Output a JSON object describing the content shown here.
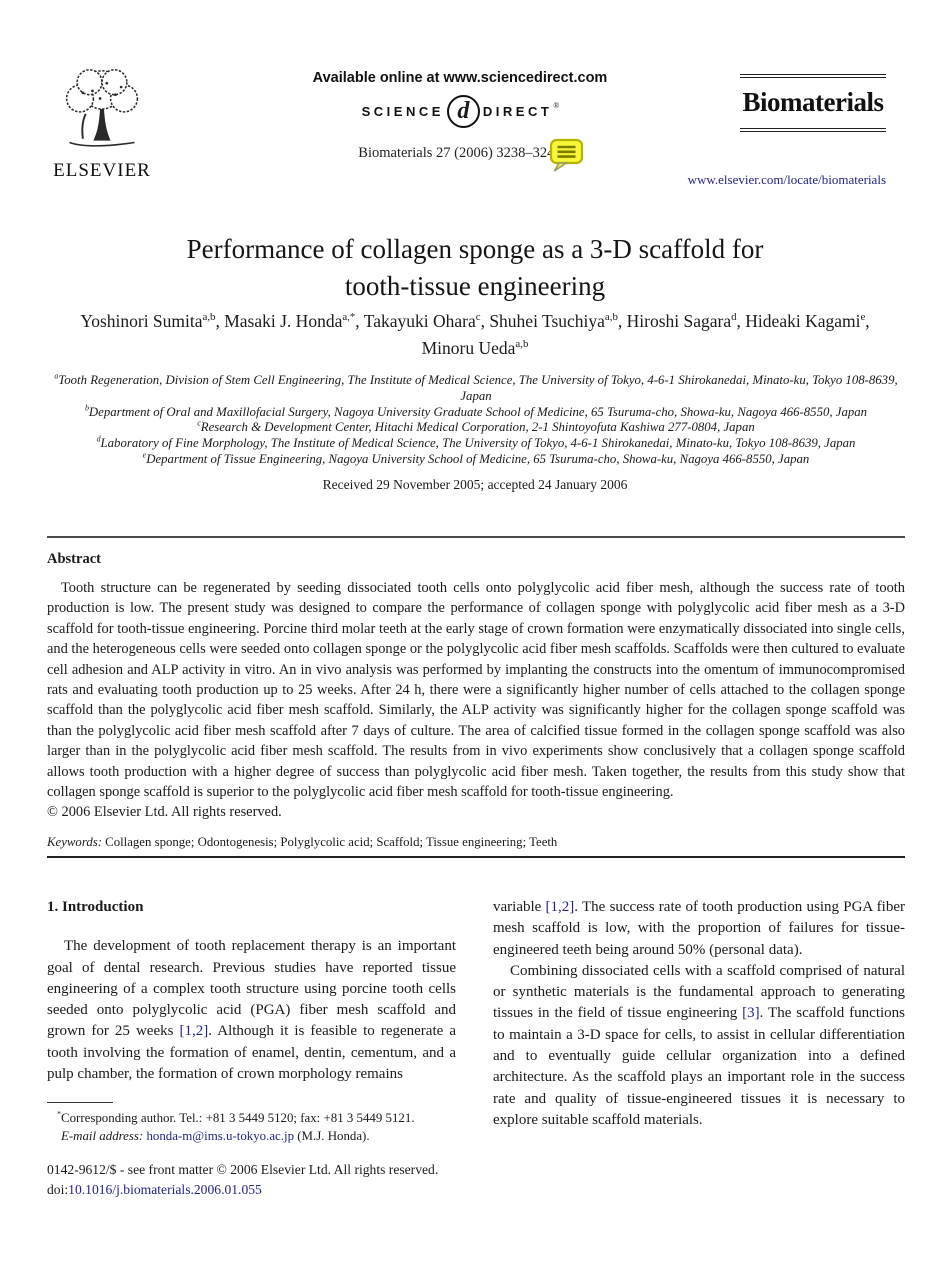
{
  "page": {
    "link_color": "#23238c"
  },
  "header": {
    "available_online": "Available online at www.sciencedirect.com",
    "sciencedirect_left": "SCIENCE",
    "sciencedirect_d": "d",
    "sciencedirect_right": "DIRECT",
    "sciencedirect_reg": "®",
    "citation": "Biomaterials 27 (2006) 3238–3248",
    "elsevier_label": "ELSEVIER",
    "journal_name": "Biomaterials",
    "journal_url": "www.elsevier.com/locate/biomaterials"
  },
  "article": {
    "title_line1": "Performance of collagen sponge as a 3-D scaffold for",
    "title_line2": "tooth-tissue engineering",
    "authors_rich": [
      {
        "t": "Yoshinori Sumita"
      },
      {
        "t": "a,b",
        "c": "sup"
      },
      {
        "t": ", Masaki J. Honda"
      },
      {
        "t": "a,*",
        "c": "sup"
      },
      {
        "t": ", Takayuki Ohara"
      },
      {
        "t": "c",
        "c": "sup"
      },
      {
        "t": ", Shuhei Tsuchiya"
      },
      {
        "t": "a,b",
        "c": "sup"
      },
      {
        "t": ", Hiroshi Sagara"
      },
      {
        "t": "d",
        "c": "sup"
      },
      {
        "t": ", Hideaki Kagami"
      },
      {
        "t": "e",
        "c": "sup"
      },
      {
        "t": ", Minoru Ueda"
      },
      {
        "t": "a,b",
        "c": "sup"
      }
    ],
    "affiliations": [
      {
        "label": "a",
        "text": "Tooth Regeneration, Division of Stem Cell Engineering, The Institute of Medical Science, The University of Tokyo, 4-6-1 Shirokanedai, Minato-ku, Tokyo 108-8639, Japan"
      },
      {
        "label": "b",
        "text": "Department of Oral and Maxillofacial Surgery, Nagoya University Graduate School of Medicine, 65 Tsuruma-cho, Showa-ku, Nagoya 466-8550, Japan"
      },
      {
        "label": "c",
        "text": "Research & Development Center, Hitachi Medical Corporation, 2-1 Shintoyofuta Kashiwa 277-0804, Japan"
      },
      {
        "label": "d",
        "text": "Laboratory of Fine Morphology, The Institute of Medical Science, The University of Tokyo, 4-6-1 Shirokanedai, Minato-ku, Tokyo 108-8639, Japan"
      },
      {
        "label": "e",
        "text": "Department of Tissue Engineering, Nagoya University School of Medicine, 65 Tsuruma-cho, Showa-ku, Nagoya 466-8550, Japan"
      }
    ],
    "received": "Received 29 November 2005; accepted 24 January 2006"
  },
  "abstract": {
    "heading": "Abstract",
    "text": "Tooth structure can be regenerated by seeding dissociated tooth cells onto polyglycolic acid fiber mesh, although the success rate of tooth production is low. The present study was designed to compare the performance of collagen sponge with polyglycolic acid fiber mesh as a 3-D scaffold for tooth-tissue engineering. Porcine third molar teeth at the early stage of crown formation were enzymatically dissociated into single cells, and the heterogeneous cells were seeded onto collagen sponge or the polyglycolic acid fiber mesh scaffolds. Scaffolds were then cultured to evaluate cell adhesion and ALP activity in vitro. An in vivo analysis was performed by implanting the constructs into the omentum of immunocompromised rats and evaluating tooth production up to 25 weeks. After 24 h, there were a significantly higher number of cells attached to the collagen sponge scaffold than the polyglycolic acid fiber mesh scaffold. Similarly, the ALP activity was significantly higher for the collagen sponge scaffold was than the polyglycolic acid fiber mesh scaffold after 7 days of culture. The area of calcified tissue formed in the collagen sponge scaffold was also larger than in the polyglycolic acid fiber mesh scaffold. The results from in vivo experiments show conclusively that a collagen sponge scaffold allows tooth production with a higher degree of success than polyglycolic acid fiber mesh. Taken together, the results from this study show that collagen sponge scaffold is superior to the polyglycolic acid fiber mesh scaffold for tooth-tissue engineering.",
    "copyright": "© 2006 Elsevier Ltd. All rights reserved."
  },
  "keywords": {
    "label": "Keywords:",
    "text": " Collagen sponge; Odontogenesis; Polyglycolic acid; Scaffold; Tissue engineering; Teeth"
  },
  "introduction": {
    "heading": "1. Introduction",
    "left_par1_rich": [
      {
        "t": "The development of tooth replacement therapy is an important goal of dental research. Previous studies have reported tissue engineering of a complex tooth structure using porcine tooth cells seeded onto polyglycolic acid (PGA) fiber mesh scaffold and grown for 25 weeks "
      },
      {
        "t": "[1,2]",
        "c": "link"
      },
      {
        "t": ". Although it is feasible to regenerate a tooth involving the formation of enamel, dentin, cementum, and a pulp chamber, the formation of crown morphology remains"
      }
    ],
    "right_par1_rich": [
      {
        "t": "variable "
      },
      {
        "t": "[1,2]",
        "c": "link"
      },
      {
        "t": ". The success rate of tooth production using PGA fiber mesh scaffold is low, with the proportion of failures for tissue-engineered teeth being around 50% (personal data)."
      }
    ],
    "right_par2_rich": [
      {
        "t": "Combining dissociated cells with a scaffold comprised of natural or synthetic materials is the fundamental approach to generating tissues in the field of tissue engineering "
      },
      {
        "t": "[3]",
        "c": "link"
      },
      {
        "t": ". The scaffold functions to maintain a 3-D space for cells, to assist in cellular differentiation and to eventually guide cellular organization into a defined architecture. As the scaffold plays an important role in the success rate and quality of tissue-engineered tissues it is necessary to explore suitable scaffold materials."
      }
    ]
  },
  "footnote": {
    "line1_rich": [
      {
        "t": "*",
        "c": "sup"
      },
      {
        "t": "Corresponding author. Tel.: +81 3 5449 5120; fax: +81 3 5449 5121."
      }
    ],
    "line2_rich": [
      {
        "t": "E-mail address:",
        "c": "ital"
      },
      {
        "t": " "
      },
      {
        "t": "honda-m@ims.u-tokyo.ac.jp",
        "c": "link"
      },
      {
        "t": " (M.J. Honda)."
      }
    ]
  },
  "footer": {
    "front_matter": "0142-9612/$ - see front matter © 2006 Elsevier Ltd. All rights reserved.",
    "doi_rich": [
      {
        "t": "doi:"
      },
      {
        "t": "10.1016/j.biomaterials.2006.01.055",
        "c": "link"
      }
    ]
  }
}
